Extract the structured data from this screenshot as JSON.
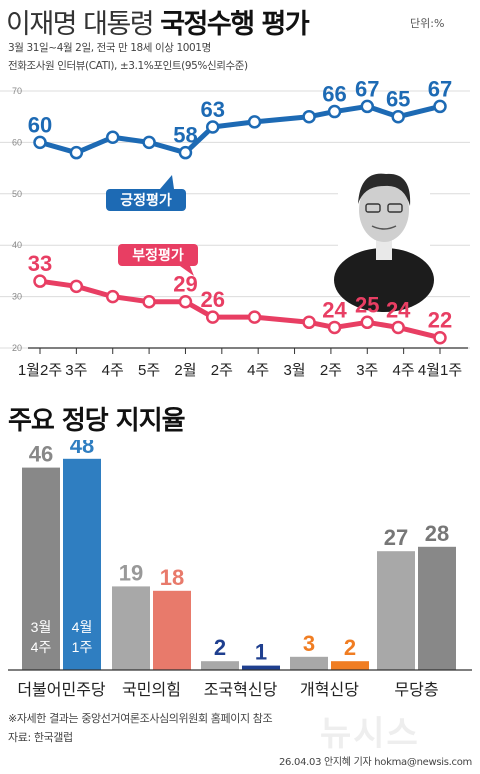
{
  "header": {
    "title_light": "이재명 대통령",
    "title_bold": "국정수행 평가",
    "unit": "단위:%",
    "survey_period": "3월 31일~4월 2일, 전국 만 18세 이상 1001명",
    "survey_method": "전화조사원 인터뷰(CATI), ±3.1%포인트(95%신뢰수준)"
  },
  "colors": {
    "positive": "#1d6ab4",
    "negative": "#e83e63",
    "party_blue": "#2f7ec1",
    "party_red": "#e87a6b",
    "party_navy": "#1f3f8f",
    "party_orange": "#f07d22",
    "gray_dark": "#888888",
    "gray_light": "#a8a8a8"
  },
  "chart_data": [
    {
      "type": "line",
      "title": "이재명 대통령 국정수행 평가",
      "x": [
        "1월2주",
        "3주",
        "4주",
        "5주",
        "2월",
        "2주",
        "4주",
        "3월",
        "2주",
        "3주",
        "4주",
        "4월1주"
      ],
      "x_tick_labels": [
        "1월2주",
        "3주",
        "4주",
        "5주",
        "2월",
        "2주",
        "4주",
        "3월",
        "2주",
        "3주",
        "4주",
        "4월1주"
      ],
      "x_point_index": [
        0,
        1,
        2,
        3,
        4,
        4.75,
        5.9,
        7.4,
        8.1,
        9,
        9.85,
        11
      ],
      "series": [
        {
          "name": "긍정평가",
          "values": [
            60,
            58,
            61,
            60,
            58,
            63,
            64,
            65,
            66,
            67,
            65,
            67
          ],
          "labeled": [
            true,
            false,
            false,
            false,
            true,
            true,
            false,
            false,
            true,
            true,
            true,
            true
          ]
        },
        {
          "name": "부정평가",
          "values": [
            33,
            32,
            30,
            29,
            29,
            26,
            26,
            25,
            24,
            25,
            24,
            22
          ],
          "labeled": [
            true,
            false,
            false,
            false,
            true,
            true,
            false,
            false,
            true,
            true,
            true,
            true
          ]
        }
      ],
      "y_ticks": [
        70,
        60,
        50,
        40,
        30,
        20
      ],
      "ylim": [
        20,
        70
      ]
    },
    {
      "type": "bar",
      "title": "주요 정당 지지율",
      "categories": [
        "더불어민주당",
        "국민의힘",
        "조국혁신당",
        "개혁신당",
        "무당층"
      ],
      "series": [
        {
          "name": "3월 4주",
          "values": [
            46,
            19,
            2,
            3,
            27
          ]
        },
        {
          "name": "4월 1주",
          "values": [
            48,
            18,
            1,
            2,
            28
          ]
        }
      ],
      "first_bar_inner_labels": [
        [
          "3월",
          "4주"
        ],
        [
          "4월",
          "1주"
        ]
      ],
      "ylim": [
        0,
        50
      ]
    }
  ],
  "section2_title": "주요 정당 지지율",
  "notes": {
    "line1": "※자세한 결과는 중앙선거여론조사심의위원회 홈페이지 참조",
    "line2": "자료: 한국갤럽"
  },
  "credit": "26.04.03 안지혜 기자 hokma@newsis.com",
  "watermark": "뉴시스"
}
